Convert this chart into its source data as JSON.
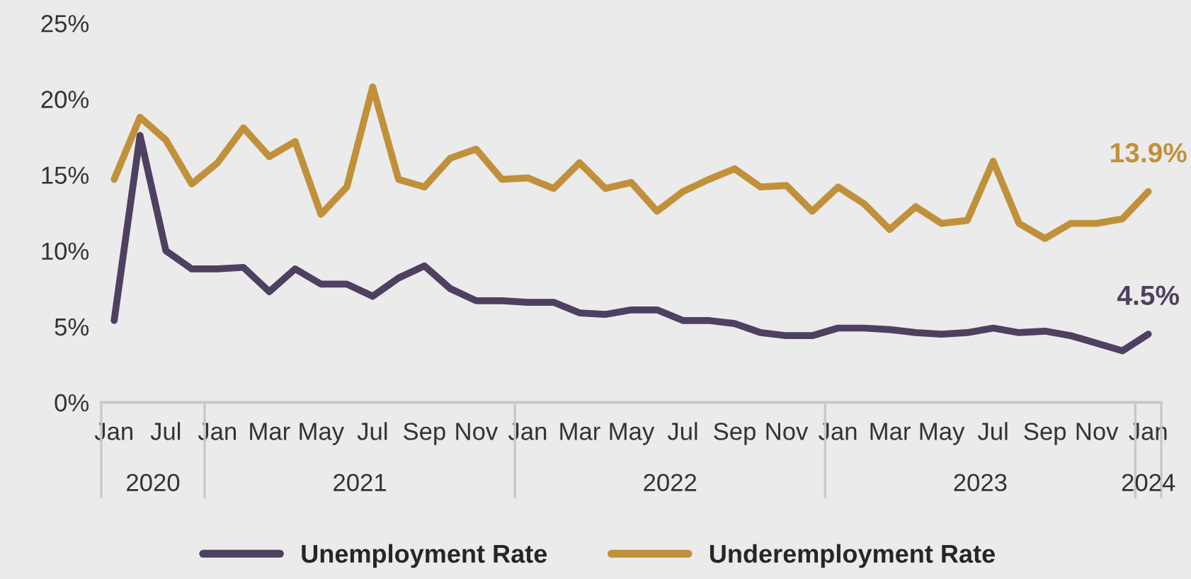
{
  "chart_data": {
    "type": "line",
    "categories": [
      "Jan",
      null,
      "Jul",
      null,
      "Jan",
      null,
      "Mar",
      null,
      "May",
      null,
      "Jul",
      null,
      "Sep",
      null,
      "Nov",
      null,
      "Jan",
      null,
      "Mar",
      null,
      "May",
      null,
      "Jul",
      null,
      "Sep",
      null,
      "Nov",
      null,
      "Jan",
      null,
      "Mar",
      null,
      "May",
      null,
      "Jul",
      null,
      "Sep",
      null,
      "Nov",
      null,
      "Jan"
    ],
    "series": [
      {
        "name": "Unemployment Rate",
        "color": "#4e4060",
        "values": [
          5.4,
          17.6,
          10.0,
          8.8,
          8.8,
          8.9,
          7.3,
          8.8,
          7.8,
          7.8,
          7.0,
          8.2,
          9.0,
          7.5,
          6.7,
          6.7,
          6.6,
          6.6,
          5.9,
          5.8,
          6.1,
          6.1,
          5.4,
          5.4,
          5.2,
          4.6,
          4.4,
          4.4,
          4.9,
          4.9,
          4.8,
          4.6,
          4.5,
          4.6,
          4.9,
          4.6,
          4.7,
          4.4,
          3.9,
          3.4,
          4.5
        ],
        "value_labels": [
          null,
          null,
          null,
          null,
          null,
          null,
          null,
          null,
          null,
          null,
          null,
          null,
          null,
          null,
          null,
          null,
          null,
          null,
          null,
          null,
          null,
          null,
          null,
          null,
          null,
          null,
          null,
          null,
          null,
          null,
          null,
          null,
          null,
          null,
          null,
          null,
          null,
          null,
          null,
          null,
          "4.5%"
        ]
      },
      {
        "name": "Underemployment Rate",
        "color": "#c0913a",
        "values": [
          14.7,
          18.8,
          17.3,
          14.4,
          15.8,
          18.1,
          16.2,
          17.2,
          12.4,
          14.2,
          20.8,
          14.7,
          14.2,
          16.1,
          16.7,
          14.7,
          14.8,
          14.1,
          15.8,
          14.1,
          14.5,
          12.6,
          13.9,
          14.7,
          15.4,
          14.2,
          14.3,
          12.6,
          14.2,
          13.1,
          11.4,
          12.9,
          11.8,
          12.0,
          15.9,
          11.8,
          10.8,
          11.8,
          11.8,
          12.1,
          13.9
        ],
        "value_labels": [
          null,
          null,
          null,
          null,
          null,
          null,
          null,
          null,
          null,
          null,
          null,
          null,
          null,
          null,
          null,
          null,
          null,
          null,
          null,
          null,
          null,
          null,
          null,
          null,
          null,
          null,
          null,
          null,
          null,
          null,
          null,
          null,
          null,
          null,
          null,
          null,
          null,
          null,
          null,
          null,
          "13.9%"
        ]
      }
    ],
    "annotations": [
      "2020",
      "2021",
      "2022",
      "2023",
      "2024"
    ],
    "ylim": [
      0,
      25
    ],
    "yticks": [
      {
        "value": 0,
        "label": "0%"
      },
      {
        "value": 5,
        "label": "5%"
      },
      {
        "value": 10,
        "label": "10%"
      },
      {
        "value": 15,
        "label": "15%"
      },
      {
        "value": 20,
        "label": "20%"
      },
      {
        "value": 25,
        "label": "25%"
      }
    ],
    "grid": false,
    "legend": "bottom",
    "marker": "none",
    "line_style": "solid"
  }
}
